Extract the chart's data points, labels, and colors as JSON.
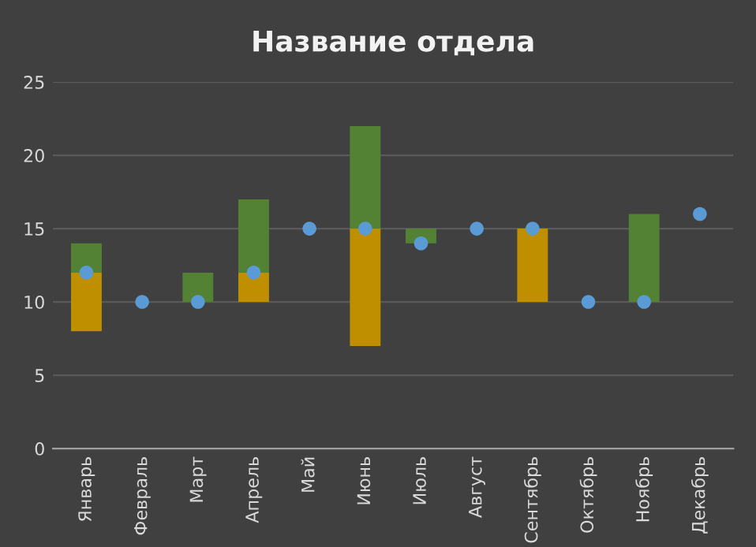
{
  "chart_data": {
    "type": "bar",
    "title": "Название отдела",
    "categories": [
      "Январь",
      "Февраль",
      "Март",
      "Апрель",
      "Май",
      "Июнь",
      "Июль",
      "Август",
      "Сентябрь",
      "Октябрь",
      "Ноябрь",
      "Декабрь"
    ],
    "series": [
      {
        "color": "#bf8f00",
        "base": [
          8,
          null,
          null,
          10,
          null,
          7,
          null,
          null,
          10,
          null,
          null,
          null
        ],
        "values": [
          4,
          null,
          null,
          2,
          null,
          8,
          null,
          null,
          5,
          null,
          null,
          null
        ]
      },
      {
        "color": "#548235",
        "base": [
          12,
          null,
          10,
          12,
          null,
          15,
          14,
          null,
          null,
          null,
          10,
          null
        ],
        "values": [
          2,
          null,
          2,
          5,
          null,
          7,
          1,
          null,
          null,
          null,
          6,
          null
        ]
      },
      {
        "type": "scatter",
        "color": "#5b9bd5",
        "x": [
          "Январь",
          "Февраль",
          "Март",
          "Апрель",
          "Май",
          "Июнь",
          "Июль",
          "Август",
          "Сентябрь",
          "Октябрь",
          "Ноябрь",
          "Декабрь"
        ],
        "values": [
          12,
          10,
          10,
          12,
          15,
          15,
          14,
          15,
          15,
          10,
          10,
          16
        ]
      }
    ],
    "ylim": [
      0,
      25
    ],
    "yticks": [
      0,
      5,
      10,
      15,
      20,
      25
    ],
    "grid": "y",
    "marker": "circle"
  }
}
